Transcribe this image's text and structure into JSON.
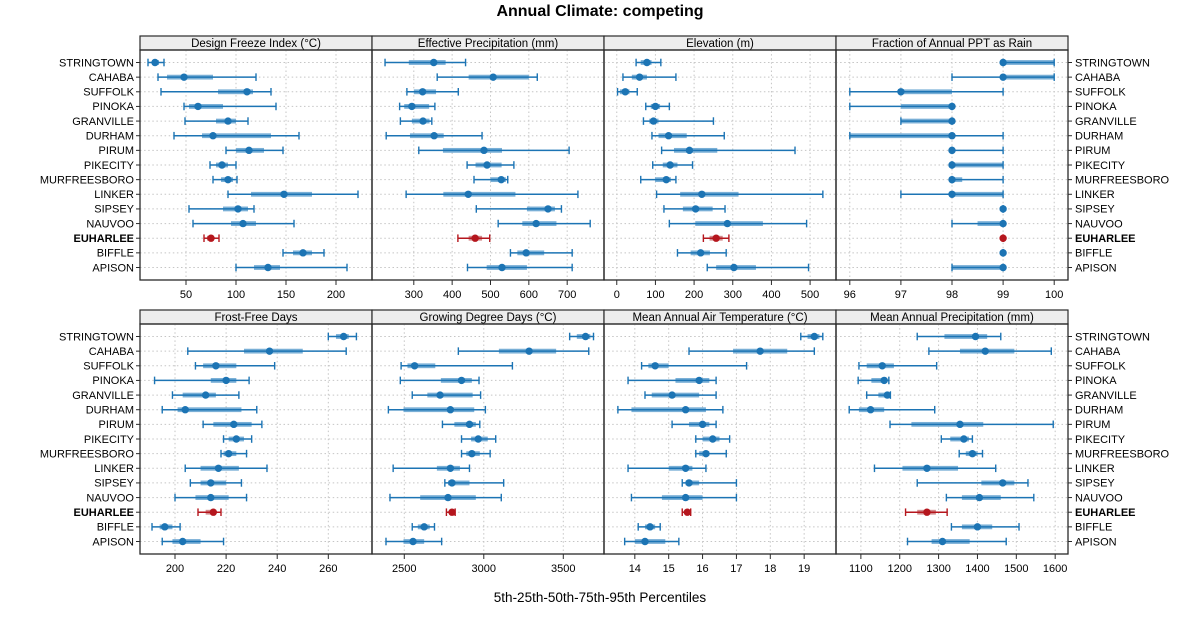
{
  "title": "Annual Climate: competing",
  "caption": "5th-25th-50th-75th-95th Percentiles",
  "colors": {
    "series": "#1c74b4",
    "series_band": "#79afd6",
    "highlight": "#b5161d",
    "highlight_band": "#d28b8d",
    "strip_bg": "#ededed",
    "panel_border": "#2a2a2a",
    "grid": "#c5c5c5",
    "text": "#000000"
  },
  "chart_data": {
    "type": "dotplot",
    "subtype": "percentile interval plot (5th-25th-50th-75th-95th), trellis with 8 panels",
    "title": "Annual Climate: competing",
    "caption": "5th-25th-50th-75th-95th Percentiles",
    "grid": "dotted",
    "legend_position": "none",
    "highlight_station": "EUHARLEE",
    "stations": [
      "STRINGTOWN",
      "CAHABA",
      "SUFFOLK",
      "PINOKA",
      "GRANVILLE",
      "DURHAM",
      "PIRUM",
      "PIKECITY",
      "MURFREESBORO",
      "LINKER",
      "SIPSEY",
      "NAUVOO",
      "EUHARLEE",
      "BIFFLE",
      "APISON"
    ],
    "percentile_labels": [
      "5th",
      "25th",
      "50th",
      "75th",
      "95th"
    ],
    "panels": [
      {
        "title": "Design Freeze Index (°C)",
        "ticks": [
          50,
          100,
          150,
          200
        ],
        "xlim": [
          4,
          236
        ],
        "values": [
          [
            12,
            16,
            19,
            23,
            28
          ],
          [
            22,
            31,
            48,
            77,
            120
          ],
          [
            25,
            82,
            111,
            117,
            135
          ],
          [
            48,
            53,
            62,
            87,
            140
          ],
          [
            49,
            80,
            92,
            100,
            112
          ],
          [
            38,
            66,
            77,
            135,
            163
          ],
          [
            90,
            100,
            113,
            128,
            147
          ],
          [
            74,
            80,
            86,
            92,
            100
          ],
          [
            77,
            85,
            92,
            97,
            101
          ],
          [
            92,
            115,
            148,
            176,
            222
          ],
          [
            53,
            87,
            102,
            112,
            118
          ],
          [
            57,
            95,
            107,
            120,
            158
          ],
          [
            68,
            71,
            75,
            78,
            83
          ],
          [
            147,
            157,
            167,
            176,
            188
          ],
          [
            100,
            118,
            132,
            144,
            211
          ]
        ]
      },
      {
        "title": "Effective Precipitation (mm)",
        "ticks": [
          300,
          400,
          500,
          600,
          700
        ],
        "xlim": [
          191,
          796
        ],
        "values": [
          [
            225,
            287,
            352,
            383,
            435
          ],
          [
            361,
            443,
            507,
            600,
            622
          ],
          [
            282,
            300,
            323,
            358,
            416
          ],
          [
            263,
            275,
            295,
            340,
            355
          ],
          [
            265,
            295,
            324,
            341,
            347
          ],
          [
            228,
            290,
            353,
            378,
            478
          ],
          [
            313,
            376,
            483,
            530,
            705
          ],
          [
            439,
            461,
            491,
            529,
            561
          ],
          [
            457,
            500,
            528,
            540,
            545
          ],
          [
            280,
            377,
            442,
            565,
            728
          ],
          [
            463,
            595,
            650,
            668,
            685
          ],
          [
            520,
            583,
            619,
            672,
            760
          ],
          [
            415,
            443,
            460,
            478,
            498
          ],
          [
            552,
            570,
            593,
            640,
            713
          ],
          [
            440,
            490,
            530,
            595,
            713
          ]
        ]
      },
      {
        "title": "Elevation (m)",
        "ticks": [
          0,
          100,
          200,
          300,
          400,
          500
        ],
        "xlim": [
          -33,
          567
        ],
        "values": [
          [
            50,
            62,
            78,
            90,
            114
          ],
          [
            16,
            39,
            59,
            78,
            153
          ],
          [
            2,
            8,
            22,
            33,
            53
          ],
          [
            75,
            88,
            100,
            112,
            136
          ],
          [
            69,
            84,
            95,
            108,
            250
          ],
          [
            91,
            108,
            134,
            181,
            278
          ],
          [
            116,
            148,
            188,
            260,
            461
          ],
          [
            93,
            119,
            138,
            157,
            196
          ],
          [
            62,
            99,
            128,
            140,
            153
          ],
          [
            103,
            164,
            220,
            315,
            533
          ],
          [
            122,
            171,
            204,
            248,
            280
          ],
          [
            136,
            203,
            286,
            378,
            491
          ],
          [
            224,
            240,
            257,
            274,
            290
          ],
          [
            157,
            191,
            217,
            241,
            283
          ],
          [
            234,
            257,
            303,
            360,
            496
          ]
        ]
      },
      {
        "title": "Fraction of Annual PPT as Rain",
        "ticks": [
          96,
          97,
          98,
          99,
          100
        ],
        "xlim": [
          95.73,
          100.27
        ],
        "values": [
          [
            99,
            99,
            99,
            100,
            100
          ],
          [
            98,
            99,
            99,
            100,
            100
          ],
          [
            96,
            97,
            97,
            98,
            99
          ],
          [
            96,
            97,
            98,
            98,
            98
          ],
          [
            97,
            97,
            98,
            98,
            98
          ],
          [
            96,
            96,
            98,
            98,
            99
          ],
          [
            98,
            98,
            98,
            98,
            99
          ],
          [
            98,
            98,
            98,
            99,
            99
          ],
          [
            98,
            98,
            98,
            98.2,
            99
          ],
          [
            97,
            98,
            98,
            99,
            99
          ],
          [
            99,
            99,
            99,
            99,
            99
          ],
          [
            98,
            98.5,
            99,
            99,
            99
          ],
          [
            99,
            99,
            99,
            99,
            99
          ],
          [
            99,
            99,
            99,
            99,
            99
          ],
          [
            98,
            98,
            99,
            99,
            99
          ]
        ]
      },
      {
        "title": "Frost-Free Days",
        "ticks": [
          200,
          220,
          240,
          260
        ],
        "xlim": [
          186.3,
          277.1
        ],
        "values": [
          [
            260,
            263,
            266,
            268,
            271
          ],
          [
            205,
            227,
            237,
            250,
            267
          ],
          [
            208,
            211,
            216,
            224,
            239
          ],
          [
            192,
            214,
            220,
            224,
            229
          ],
          [
            199,
            203,
            212,
            216,
            225
          ],
          [
            195,
            201,
            204,
            226,
            232
          ],
          [
            211,
            215,
            223,
            230,
            234
          ],
          [
            219,
            221,
            224,
            227,
            230
          ],
          [
            218,
            219,
            221,
            224,
            228
          ],
          [
            204,
            210,
            217,
            225,
            236
          ],
          [
            206,
            210,
            214,
            220,
            226
          ],
          [
            200,
            208,
            214,
            221,
            228
          ],
          [
            209,
            212,
            215,
            216,
            218
          ],
          [
            191,
            194,
            196,
            199,
            202
          ],
          [
            195,
            199,
            203,
            210,
            219
          ]
        ]
      },
      {
        "title": "Growing Degree Days (°C)",
        "ticks": [
          2500,
          3000,
          3500
        ],
        "xlim": [
          2297,
          3756
        ],
        "values": [
          [
            3540,
            3585,
            3640,
            3670,
            3690
          ],
          [
            2840,
            3095,
            3285,
            3455,
            3660
          ],
          [
            2480,
            2520,
            2565,
            2695,
            3180
          ],
          [
            2475,
            2730,
            2860,
            2925,
            2970
          ],
          [
            2550,
            2645,
            2725,
            2930,
            2980
          ],
          [
            2400,
            2495,
            2790,
            2940,
            3010
          ],
          [
            2740,
            2815,
            2910,
            2950,
            2975
          ],
          [
            2860,
            2920,
            2965,
            3025,
            3075
          ],
          [
            2860,
            2890,
            2925,
            2975,
            3040
          ],
          [
            2430,
            2705,
            2790,
            2850,
            2910
          ],
          [
            2755,
            2775,
            2800,
            2910,
            3125
          ],
          [
            2410,
            2600,
            2775,
            2950,
            3110
          ],
          [
            2765,
            2785,
            2800,
            2815,
            2820
          ],
          [
            2550,
            2585,
            2625,
            2660,
            2690
          ],
          [
            2385,
            2495,
            2555,
            2625,
            2735
          ]
        ]
      },
      {
        "title": "Mean Annual Air Temperature (°C)",
        "ticks": [
          14,
          15,
          16,
          17,
          18,
          19
        ],
        "xlim": [
          13.09,
          19.94
        ],
        "values": [
          [
            18.9,
            19.1,
            19.3,
            19.45,
            19.55
          ],
          [
            15.6,
            16.9,
            17.7,
            18.5,
            19.3
          ],
          [
            14.2,
            14.4,
            14.6,
            15.0,
            17.3
          ],
          [
            13.8,
            15.2,
            15.9,
            16.2,
            16.4
          ],
          [
            14.3,
            14.5,
            15.1,
            15.9,
            16.4
          ],
          [
            13.5,
            13.9,
            15.5,
            16.1,
            16.6
          ],
          [
            15.1,
            15.6,
            16.0,
            16.2,
            16.4
          ],
          [
            15.8,
            16.0,
            16.3,
            16.5,
            16.8
          ],
          [
            15.8,
            15.9,
            16.1,
            16.2,
            16.7
          ],
          [
            13.8,
            15.0,
            15.5,
            15.7,
            16.1
          ],
          [
            15.4,
            15.5,
            15.6,
            15.9,
            17.0
          ],
          [
            13.9,
            14.8,
            15.5,
            16.0,
            17.0
          ],
          [
            15.4,
            15.5,
            15.55,
            15.6,
            15.65
          ],
          [
            14.1,
            14.3,
            14.45,
            14.6,
            14.75
          ],
          [
            13.7,
            14.0,
            14.3,
            14.9,
            15.3
          ]
        ]
      },
      {
        "title": "Mean Annual Precipitation (mm)",
        "ticks": [
          1100,
          1200,
          1300,
          1400,
          1500,
          1600
        ],
        "xlim": [
          1036,
          1633
        ],
        "values": [
          [
            1245,
            1315,
            1395,
            1425,
            1460
          ],
          [
            1275,
            1355,
            1420,
            1495,
            1590
          ],
          [
            1095,
            1115,
            1155,
            1185,
            1295
          ],
          [
            1093,
            1127,
            1160,
            1168,
            1172
          ],
          [
            1115,
            1145,
            1168,
            1172,
            1176
          ],
          [
            1070,
            1095,
            1125,
            1160,
            1290
          ],
          [
            1175,
            1230,
            1355,
            1415,
            1595
          ],
          [
            1307,
            1330,
            1365,
            1378,
            1387
          ],
          [
            1353,
            1370,
            1387,
            1400,
            1413
          ],
          [
            1135,
            1207,
            1270,
            1350,
            1447
          ],
          [
            1245,
            1410,
            1465,
            1495,
            1530
          ],
          [
            1320,
            1360,
            1405,
            1460,
            1545
          ],
          [
            1215,
            1245,
            1270,
            1293,
            1322
          ],
          [
            1333,
            1360,
            1400,
            1438,
            1507
          ],
          [
            1220,
            1282,
            1310,
            1380,
            1474
          ]
        ]
      }
    ]
  }
}
